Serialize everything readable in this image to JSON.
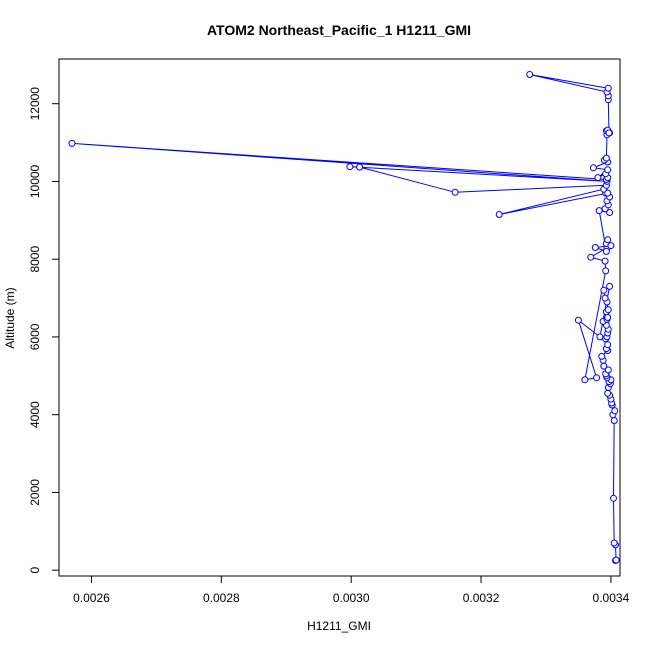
{
  "chart_data": {
    "type": "line",
    "title": "ATOM2 Northeast_Pacific_1 H1211_GMI",
    "xlabel": "H1211_GMI",
    "ylabel": "Altitude (m)",
    "xlim": [
      0.00255,
      0.003414
    ],
    "ylim": [
      -150,
      13150
    ],
    "x_ticks": [
      0.0026,
      0.0028,
      0.003,
      0.0032,
      0.0034
    ],
    "x_tick_labels": [
      "0.0026",
      "0.0028",
      "0.0030",
      "0.0032",
      "0.0034"
    ],
    "y_ticks": [
      0,
      2000,
      4000,
      6000,
      8000,
      10000,
      12000
    ],
    "y_tick_labels": [
      "0",
      "2000",
      "4000",
      "6000",
      "8000",
      "10000",
      "12000"
    ],
    "grid": false,
    "legend": "none",
    "series_color": "#0000ff",
    "marker": "open-circle",
    "series": [
      {
        "x": [
          0.003407,
          0.003408,
          0.003407,
          0.003405,
          0.003404,
          0.003405,
          0.003403,
          0.003406,
          0.003402,
          0.003401,
          0.0034,
          0.003398,
          0.003395,
          0.003396,
          0.003399,
          0.003397,
          0.0034,
          0.003394,
          0.003393,
          0.003392,
          0.003396,
          0.003389,
          0.003388,
          0.003386,
          0.003395,
          0.003393,
          0.003395,
          0.003392,
          0.003394,
          0.003395,
          0.003396,
          0.003393,
          0.003388,
          0.003394,
          0.003395,
          0.003393,
          0.003396,
          0.003394,
          0.003391,
          0.003389,
          0.003398,
          0.003383,
          0.00335,
          0.003378,
          0.00336,
          0.003392,
          0.003391,
          0.003369,
          0.003394,
          0.003393,
          0.003395,
          0.0034,
          0.003376,
          0.003393,
          0.003382,
          0.003398,
          0.003391,
          0.003396,
          0.003394,
          0.003398,
          0.003392,
          0.003389,
          0.003228,
          0.003395,
          0.003393,
          0.00316,
          0.003013,
          0.002998,
          0.003394,
          0.00257,
          0.003393,
          0.003395,
          0.003392,
          0.00338,
          0.003395,
          0.003373,
          0.003395,
          0.00339,
          0.003393,
          0.003394,
          0.003398,
          0.003393,
          0.003395,
          0.003397,
          0.003396,
          0.003396,
          0.003394,
          0.003275,
          0.003396
        ],
        "y": [
          250,
          260,
          650,
          700,
          1850,
          3850,
          4000,
          4100,
          4250,
          4300,
          4400,
          4500,
          4550,
          4700,
          4800,
          4850,
          4900,
          4950,
          5000,
          5050,
          5150,
          5250,
          5400,
          5500,
          5650,
          5700,
          5800,
          5950,
          6000,
          6100,
          6200,
          6300,
          6400,
          6450,
          6500,
          6650,
          6700,
          6900,
          7000,
          7200,
          7300,
          6000,
          6430,
          4950,
          4900,
          7700,
          7950,
          8050,
          8300,
          8400,
          8500,
          8350,
          8300,
          8200,
          9250,
          9200,
          9300,
          9400,
          9500,
          9600,
          9700,
          9800,
          9150,
          9700,
          9900,
          9720,
          10370,
          10380,
          10000,
          10980,
          10050,
          10100,
          10200,
          10100,
          10300,
          10350,
          10500,
          10550,
          10600,
          11200,
          11250,
          11300,
          11320,
          11250,
          12100,
          12200,
          12300,
          12750,
          12400
        ]
      }
    ]
  }
}
